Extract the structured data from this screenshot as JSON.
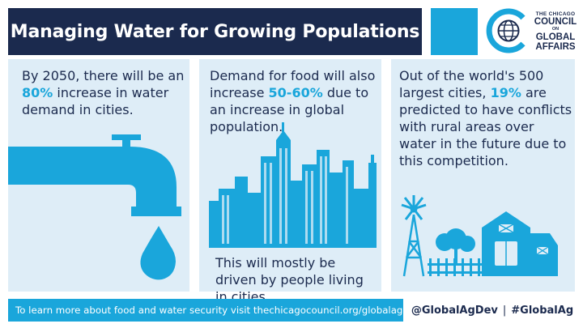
{
  "header": {
    "title": "Managing Water for Growing Populations",
    "accent_color": "#1aa6db",
    "bar_color": "#1b2a4e"
  },
  "logo": {
    "line1": "THE CHICAGO",
    "line2": "COUNCIL",
    "line3": "ON",
    "line4": "GLOBAL",
    "line5": "AFFAIRS"
  },
  "panels": [
    {
      "pre": "By 2050, there will be an ",
      "highlight": "80%",
      "post": " increase in water demand in cities.",
      "icon": "faucet-icon"
    },
    {
      "pre": "Demand for food will also increase ",
      "highlight": "50-60%",
      "post": " due to an increase in global population.",
      "bottom": "This will mostly be driven by people living in cities.",
      "icon": "city-skyline-icon"
    },
    {
      "pre": "Out of the world's 500 largest cities, ",
      "highlight": "19%",
      "post": " are predicted to have conflicts with rural areas over water in the future due to this competition.",
      "icon": "farm-icon"
    }
  ],
  "footer": {
    "text": "To learn more about food and water security visit thechicagocouncil.org/globalag"
  },
  "social": {
    "handle": "@GlobalAgDev",
    "separator": "|",
    "hashtag": "#GlobalAg"
  }
}
